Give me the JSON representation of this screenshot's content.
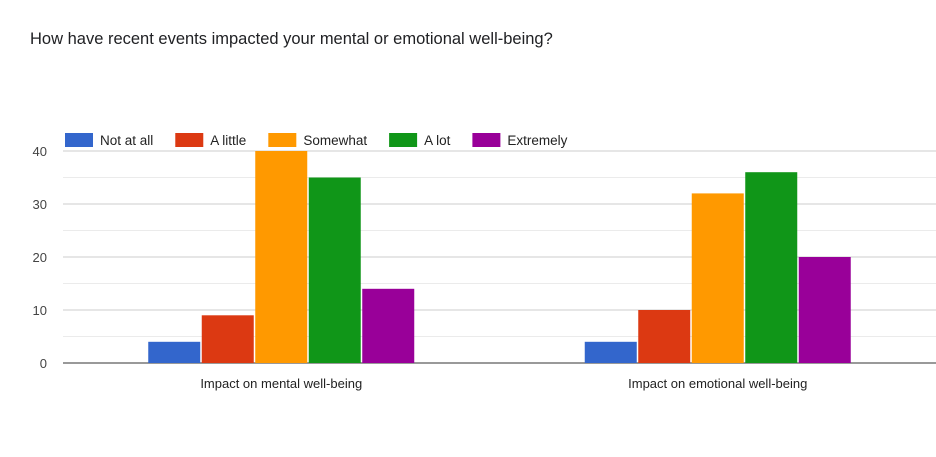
{
  "chart_data": {
    "type": "bar",
    "title": "How have recent events impacted your mental or emotional well-being?",
    "xlabel": "",
    "ylabel": "",
    "ylim": [
      0,
      40
    ],
    "yticks": [
      0,
      10,
      20,
      30,
      40
    ],
    "grid": true,
    "legend_position": "top-left",
    "categories": [
      "Impact on mental well-being",
      "Impact on emotional well-being"
    ],
    "series": [
      {
        "name": "Not at all",
        "color": "#3366cc",
        "values": [
          4,
          4
        ]
      },
      {
        "name": "A little",
        "color": "#dc3912",
        "values": [
          9,
          10
        ]
      },
      {
        "name": "Somewhat",
        "color": "#ff9900",
        "values": [
          40,
          32
        ]
      },
      {
        "name": "A lot",
        "color": "#109618",
        "values": [
          35,
          36
        ]
      },
      {
        "name": "Extremely",
        "color": "#990099",
        "values": [
          14,
          20
        ]
      }
    ]
  }
}
